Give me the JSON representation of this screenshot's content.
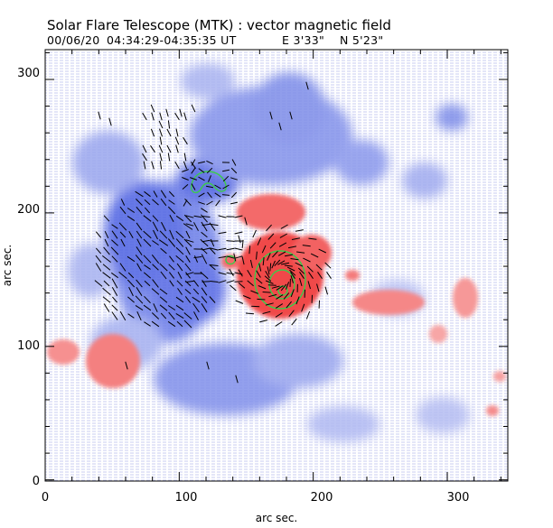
{
  "title": "Solar Flare Telescope (MTK) : vector magnetic field",
  "subtitle": {
    "date": "00/06/20",
    "time_range": "04:34:29-04:35:35 UT",
    "east": "E 3'33\"",
    "north": "N 5'23\""
  },
  "x_axis": {
    "label": "arc sec.",
    "ticks": [
      "0",
      "100",
      "200",
      "300"
    ],
    "range": [
      0,
      340
    ]
  },
  "y_axis": {
    "label": "arc sec.",
    "ticks": [
      "0",
      "100",
      "200",
      "300"
    ],
    "range": [
      0,
      320
    ]
  },
  "colors": {
    "negative_polarity": "#5a6ee6",
    "positive_polarity": "#f04a4a",
    "background_noise": "#c8cdf2",
    "contour": "#3ccc4a",
    "vectors": "#000000"
  }
}
